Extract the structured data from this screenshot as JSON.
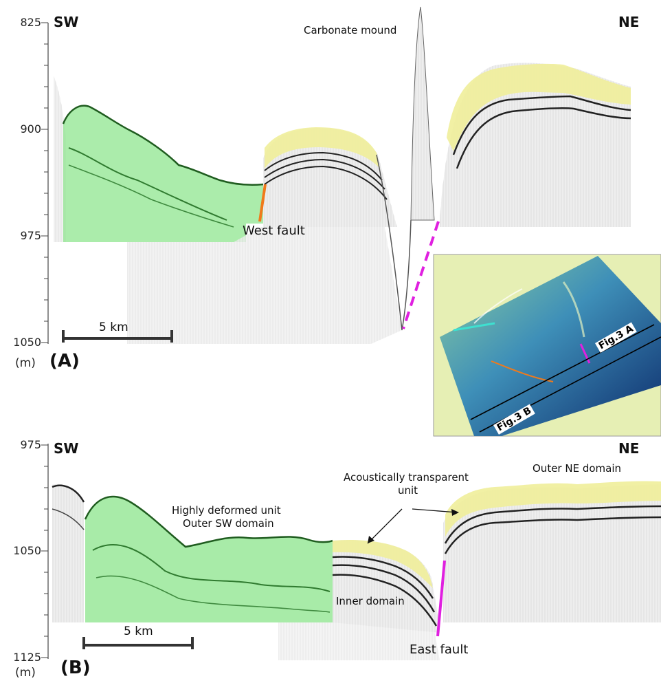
{
  "panel_a": {
    "label": "(A)",
    "left_dir": "SW",
    "right_dir": "NE",
    "y_ticks": [
      "825",
      "900",
      "975",
      "1050"
    ],
    "unit": "(m)",
    "scale_bar": "5 km",
    "annotations": {
      "mound": "Carbonate mound",
      "west_fault": "West fault"
    },
    "inset": {
      "line_a": "Fig.3 A",
      "line_b": "Fig.3 B"
    }
  },
  "panel_b": {
    "label": "(B)",
    "left_dir": "SW",
    "right_dir": "NE",
    "y_ticks": [
      "975",
      "1050",
      "1125"
    ],
    "unit": "(m)",
    "scale_bar": "5 km",
    "annotations": {
      "deformed_line1": "Highly deformed unit",
      "deformed_line2": "Outer SW domain",
      "transparent_line1": "Acoustically transparent",
      "transparent_line2": "unit",
      "outer_ne": "Outer NE domain",
      "inner": "Inner domain",
      "east_fault": "East fault"
    }
  },
  "colors": {
    "green_unit": "#8fe68f",
    "yellow_unit": "#f0ee9a",
    "west_fault": "#f07a1c",
    "east_fault": "#e020e0",
    "inset_bg": "#e6efb4"
  }
}
